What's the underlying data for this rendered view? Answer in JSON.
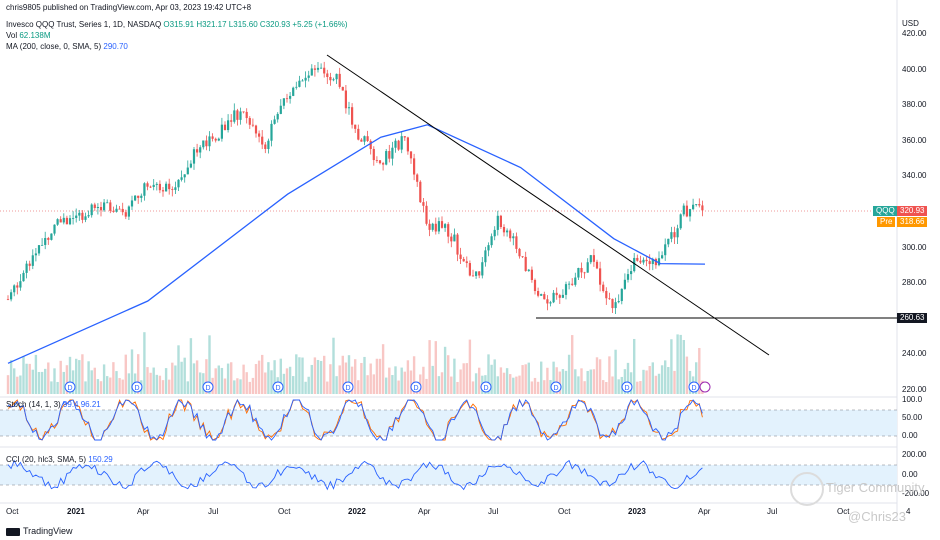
{
  "publisher_line": "chris9805 published on TradingView.com, Apr 03, 2023 19:42 UTC+8",
  "symbol_line": {
    "name": "Invesco QQQ Trust, Series 1, 1D, NASDAQ",
    "ohlc": "O315.91  H321.17  L315.60  C320.93  +5.25 (+1.66%)"
  },
  "vol_line": {
    "label": "Vol",
    "value": "62.138M"
  },
  "ma_line": {
    "label": "MA (200, close, 0, SMA, 5)",
    "value": "290.70"
  },
  "stoch_label": "Stoch (14, 1, 3)",
  "stoch_values": "99.4  96.21",
  "cci_label": "CCI (20, hlc3, SMA, 5)",
  "cci_value": "150.29",
  "currency": "USD",
  "price_ticks": [
    "420.00",
    "400.00",
    "380.00",
    "360.00",
    "340.00",
    "320.00",
    "300.00",
    "280.00",
    "260.00",
    "240.00",
    "220.00"
  ],
  "stoch_ticks": [
    "100.0",
    "50.00",
    "0.00"
  ],
  "cci_ticks": [
    "200.00",
    "0.00",
    "-200.00"
  ],
  "time_ticks": [
    "Oct",
    "2021",
    "Apr",
    "Jul",
    "Oct",
    "2022",
    "Apr",
    "Jul",
    "Oct",
    "2023",
    "Apr",
    "Jul",
    "Oct",
    "4"
  ],
  "price_tags": {
    "last_symbol": "QQQ",
    "last_value": "320.93",
    "pre_label": "Pre",
    "pre_value": "318.66",
    "support_value": "260.63"
  },
  "footer_brand": "TradingView",
  "watermark_main": "Tiger Community",
  "watermark_user": "@Chris23",
  "colors": {
    "up": "#26a69a",
    "down": "#ef5350",
    "ma": "#2962ff",
    "trend": "#000000",
    "stoch_k": "#2962ff",
    "stoch_d": "#ff6d00",
    "band": "#e3f2fd",
    "cci": "#2962ff"
  },
  "chart_data": {
    "type": "candlestick",
    "symbol": "QQQ",
    "exchange": "NASDAQ",
    "interval": "1D",
    "ylim": [
      220,
      425
    ],
    "x_range": [
      "2020-10",
      "2023-12"
    ],
    "last": {
      "open": 315.91,
      "high": 321.17,
      "low": 315.6,
      "close": 320.93,
      "change": 5.25,
      "change_pct": 1.66
    },
    "pre_market": 318.66,
    "close_monthly_approx": [
      {
        "date": "2020-10",
        "close": 271
      },
      {
        "date": "2020-11",
        "close": 295
      },
      {
        "date": "2020-12",
        "close": 313
      },
      {
        "date": "2021-01",
        "close": 318
      },
      {
        "date": "2021-02",
        "close": 324
      },
      {
        "date": "2021-03",
        "close": 320
      },
      {
        "date": "2021-04",
        "close": 338
      },
      {
        "date": "2021-05",
        "close": 333
      },
      {
        "date": "2021-06",
        "close": 352
      },
      {
        "date": "2021-07",
        "close": 364
      },
      {
        "date": "2021-08",
        "close": 377
      },
      {
        "date": "2021-09",
        "close": 358
      },
      {
        "date": "2021-10",
        "close": 386
      },
      {
        "date": "2021-11",
        "close": 398
      },
      {
        "date": "2021-12",
        "close": 398
      },
      {
        "date": "2022-01",
        "close": 364
      },
      {
        "date": "2022-02",
        "close": 347
      },
      {
        "date": "2022-03",
        "close": 362
      },
      {
        "date": "2022-04",
        "close": 314
      },
      {
        "date": "2022-05",
        "close": 308
      },
      {
        "date": "2022-06",
        "close": 280
      },
      {
        "date": "2022-07",
        "close": 315
      },
      {
        "date": "2022-08",
        "close": 297
      },
      {
        "date": "2022-09",
        "close": 267
      },
      {
        "date": "2022-10",
        "close": 278
      },
      {
        "date": "2022-11",
        "close": 293
      },
      {
        "date": "2022-12",
        "close": 266
      },
      {
        "date": "2023-01",
        "close": 294
      },
      {
        "date": "2023-02",
        "close": 294
      },
      {
        "date": "2023-03",
        "close": 320
      }
    ],
    "ma200_approx": [
      {
        "date": "2020-10",
        "value": 235
      },
      {
        "date": "2021-04",
        "value": 270
      },
      {
        "date": "2021-10",
        "value": 330
      },
      {
        "date": "2022-02",
        "value": 362
      },
      {
        "date": "2022-04",
        "value": 369
      },
      {
        "date": "2022-08",
        "value": 345
      },
      {
        "date": "2022-12",
        "value": 305
      },
      {
        "date": "2023-02",
        "value": 291
      },
      {
        "date": "2023-03",
        "value": 290.7
      }
    ],
    "trendline": [
      {
        "date": "2021-11",
        "value": 408
      },
      {
        "date": "2023-05",
        "value": 239
      }
    ],
    "support_line": {
      "value": 260.63,
      "from": "2022-09",
      "to": "2023-12"
    },
    "volume_last": "62.138M",
    "indicators": {
      "stoch": {
        "params": "14, 1, 3",
        "k": 99.4,
        "d": 96.21,
        "ylim": [
          0,
          100
        ],
        "bands": [
          80,
          20
        ]
      },
      "cci": {
        "params": "20, hlc3, SMA, 5",
        "value": 150.29,
        "ylim": [
          -250,
          250
        ],
        "bands": [
          100,
          -100
        ]
      }
    }
  }
}
